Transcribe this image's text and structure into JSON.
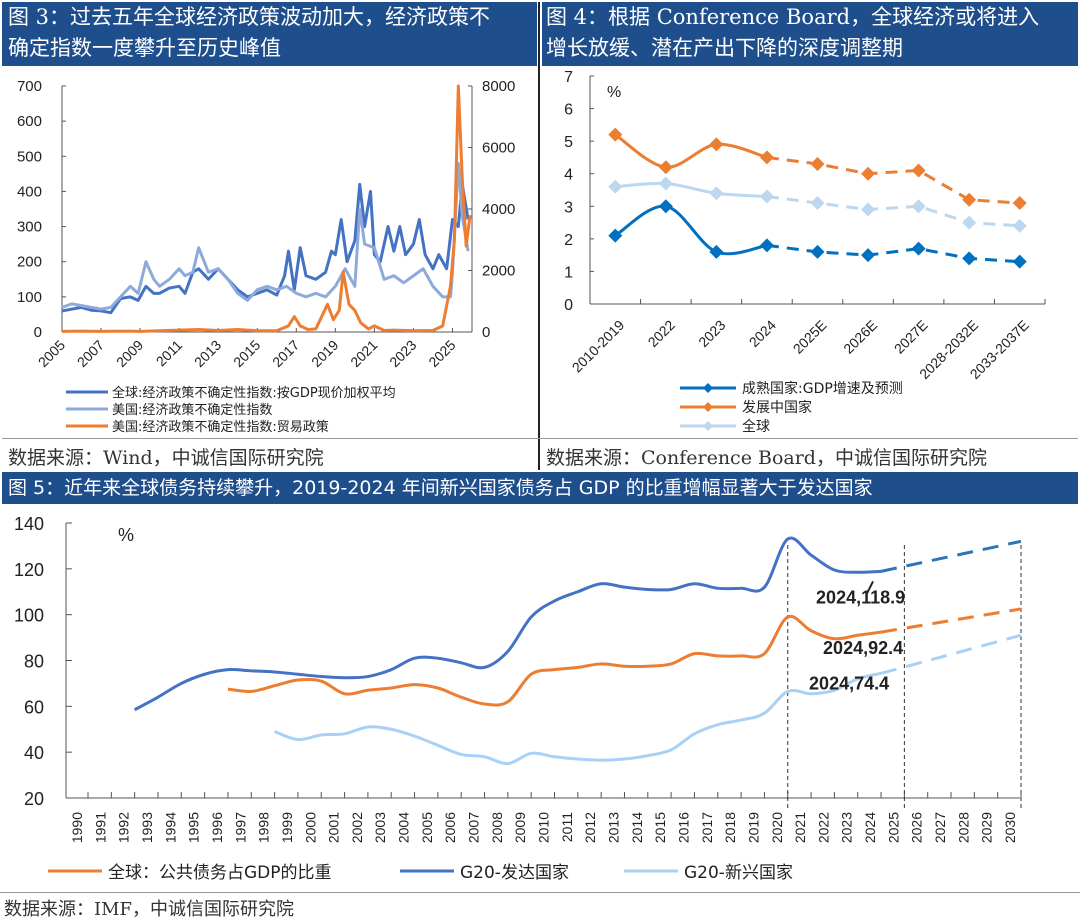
{
  "figures": {
    "fig3": {
      "title_line1": "图 3：过去五年全球经济政策波动加大，经济政策不",
      "title_line2": "确定指数一度攀升至历史峰值",
      "source": "数据来源：Wind，中诚信国际研究院"
    },
    "fig4": {
      "title_line1": "图 4：根据 Conference Board，全球经济或将进入",
      "title_line2": "增长放缓、潜在产出下降的深度调整期",
      "source": "数据来源：Conference Board，中诚信国际研究院"
    },
    "fig5": {
      "title": "图 5：近年来全球债务持续攀升，2019-2024 年间新兴国家债务占 GDP 的比重增幅显著大于发达国家",
      "source": "数据来源：IMF，中诚信国际研究院"
    }
  },
  "colors": {
    "title_bg": "#1f4e8c",
    "dark_blue": "#4472c4",
    "mid_blue": "#8eaadb",
    "orange": "#ed7d31",
    "f4_blue": "#0070c0",
    "light_blue": "#bdd7ee",
    "f5_emerging": "#a9d1f5",
    "f5_dev_forecast": "#2e75b6"
  },
  "chart_data": [
    {
      "id": "fig3",
      "type": "line",
      "title": "过去五年全球经济政策波动加大，经济政策不确定指数一度攀升至历史峰值",
      "xlabel": "",
      "ylabel": "",
      "x_ticks": [
        "2005",
        "2007",
        "2009",
        "2011",
        "2013",
        "2015",
        "2017",
        "2019",
        "2021",
        "2023",
        "2025"
      ],
      "xlim": [
        2005,
        2026
      ],
      "y_left": {
        "ylim": [
          0,
          700
        ],
        "ticks": [
          "0",
          "100",
          "200",
          "300",
          "400",
          "500",
          "600",
          "700"
        ]
      },
      "y_right": {
        "ylim": [
          0,
          8000
        ],
        "ticks": [
          "0",
          "2000",
          "4000",
          "6000",
          "8000"
        ]
      },
      "legend_position": "bottom",
      "series": [
        {
          "name": "全球:经济政策不确定性指数:按GDP现价加权平均",
          "axis": "left",
          "color": "#4472c4",
          "x": [
            2005,
            2005.5,
            2006,
            2006.5,
            2007,
            2007.5,
            2008,
            2008.5,
            2008.9,
            2009.3,
            2009.7,
            2010,
            2010.5,
            2011,
            2011.3,
            2011.7,
            2012,
            2012.5,
            2013,
            2013.5,
            2014,
            2014.5,
            2015,
            2015.5,
            2016,
            2016.4,
            2016.6,
            2016.9,
            2017.2,
            2017.5,
            2018,
            2018.5,
            2018.8,
            2019,
            2019.3,
            2019.6,
            2020,
            2020.25,
            2020.5,
            2020.8,
            2021,
            2021.3,
            2021.7,
            2022,
            2022.3,
            2022.6,
            2023,
            2023.3,
            2023.6,
            2024,
            2024.3,
            2024.7,
            2025,
            2025.3,
            2025.5,
            2025.8
          ],
          "y": [
            60,
            65,
            70,
            62,
            60,
            55,
            95,
            100,
            90,
            130,
            110,
            110,
            125,
            130,
            110,
            170,
            180,
            150,
            180,
            150,
            120,
            100,
            110,
            120,
            105,
            160,
            230,
            120,
            240,
            160,
            150,
            170,
            230,
            220,
            320,
            200,
            260,
            420,
            300,
            400,
            220,
            200,
            300,
            230,
            300,
            220,
            250,
            320,
            220,
            180,
            220,
            180,
            320,
            300,
            420,
            320
          ]
        },
        {
          "name": "美国:经济政策不确定性指数",
          "axis": "left",
          "color": "#8eaadb",
          "x": [
            2005,
            2005.5,
            2006,
            2006.5,
            2007,
            2007.5,
            2008,
            2008.5,
            2008.9,
            2009.3,
            2009.7,
            2010,
            2010.5,
            2011,
            2011.3,
            2011.7,
            2012,
            2012.5,
            2013,
            2013.5,
            2014,
            2014.5,
            2015,
            2015.5,
            2016,
            2016.5,
            2017,
            2017.5,
            2018,
            2018.5,
            2019,
            2019.5,
            2020,
            2020.25,
            2020.5,
            2021,
            2021.5,
            2022,
            2022.5,
            2023,
            2023.5,
            2024,
            2024.5,
            2024.9,
            2025,
            2025.3,
            2025.5,
            2025.8
          ],
          "y": [
            70,
            80,
            75,
            70,
            65,
            70,
            100,
            130,
            110,
            200,
            150,
            130,
            150,
            180,
            160,
            170,
            240,
            170,
            180,
            150,
            110,
            90,
            120,
            130,
            120,
            130,
            110,
            100,
            110,
            100,
            130,
            180,
            130,
            350,
            250,
            240,
            150,
            160,
            140,
            160,
            180,
            130,
            100,
            100,
            170,
            480,
            330,
            230
          ]
        },
        {
          "name": "美国:经济政策不确定性指数:贸易政策",
          "axis": "right",
          "color": "#ed7d31",
          "x": [
            2005,
            2006,
            2007,
            2008,
            2009,
            2010,
            2011,
            2012,
            2013,
            2014,
            2015,
            2016,
            2016.6,
            2016.9,
            2017.2,
            2017.6,
            2018,
            2018.3,
            2018.6,
            2018.9,
            2019.2,
            2019.4,
            2019.7,
            2020,
            2020.3,
            2020.7,
            2021,
            2021.5,
            2022,
            2023,
            2024,
            2024.5,
            2024.9,
            2025.1,
            2025.3,
            2025.5,
            2025.7,
            2025.9
          ],
          "y": [
            20,
            30,
            20,
            30,
            20,
            40,
            60,
            80,
            50,
            80,
            40,
            40,
            200,
            500,
            200,
            80,
            100,
            500,
            900,
            400,
            700,
            1950,
            900,
            700,
            300,
            100,
            200,
            50,
            60,
            40,
            50,
            200,
            1500,
            3000,
            8000,
            5000,
            2800,
            3800
          ]
        }
      ]
    },
    {
      "id": "fig4",
      "type": "line",
      "title": "根据 Conference Board，全球经济或将进入增长放缓、潜在产出下降的深度调整期",
      "ylabel": "%",
      "ylim": [
        0,
        7
      ],
      "y_ticks": [
        "0",
        "1",
        "2",
        "3",
        "4",
        "5",
        "6",
        "7"
      ],
      "categories": [
        "2010-2019",
        "2022",
        "2023",
        "2024",
        "2025E",
        "2026E",
        "2027E",
        "2028-2032E",
        "2033-2037E"
      ],
      "forecast_start_index": 3,
      "legend_position": "bottom",
      "series": [
        {
          "name": "成熟国家:GDP增速及预测",
          "color": "#0070c0",
          "values": [
            2.1,
            3.0,
            1.6,
            1.8,
            1.6,
            1.5,
            1.7,
            1.4,
            1.3
          ]
        },
        {
          "name": "发展中国家",
          "color": "#ed7d31",
          "values": [
            5.2,
            4.2,
            4.9,
            4.5,
            4.3,
            4.0,
            4.1,
            3.2,
            3.1
          ]
        },
        {
          "name": "全球",
          "color": "#bdd7ee",
          "values": [
            3.6,
            3.7,
            3.4,
            3.3,
            3.1,
            2.9,
            3.0,
            2.5,
            2.4
          ]
        }
      ]
    },
    {
      "id": "fig5",
      "type": "line",
      "title": "近年来全球债务持续攀升，2019-2024 年间新兴国家债务占 GDP 的比重增幅显著大于发达国家",
      "ylabel": "%",
      "ylim": [
        20,
        140
      ],
      "y_ticks": [
        "20",
        "40",
        "60",
        "80",
        "100",
        "120",
        "140"
      ],
      "xlim": [
        1990,
        2030
      ],
      "x_ticks": [
        "1990",
        "1991",
        "1992",
        "1993",
        "1994",
        "1995",
        "1996",
        "1997",
        "1998",
        "1999",
        "2000",
        "2001",
        "2002",
        "2003",
        "2004",
        "2005",
        "2006",
        "2007",
        "2008",
        "2009",
        "2010",
        "2011",
        "2012",
        "2013",
        "2014",
        "2015",
        "2016",
        "2017",
        "2018",
        "2019",
        "2020",
        "2021",
        "2022",
        "2023",
        "2024",
        "2025",
        "2026",
        "2027",
        "2028",
        "2029",
        "2030"
      ],
      "vertical_markers": [
        2020,
        2025,
        2030
      ],
      "forecast_start": 2024,
      "legend_position": "bottom",
      "annotations": [
        {
          "text": "2024,118.9",
          "x": 2024,
          "y": 118.9
        },
        {
          "text": "2024,92.4",
          "x": 2024,
          "y": 92.4
        },
        {
          "text": "2024,74.4",
          "x": 2024,
          "y": 74.4
        }
      ],
      "series": [
        {
          "name": "全球：公共债务占GDP的比重",
          "color": "#ed7d31",
          "x": [
            1996,
            1997,
            1998,
            1999,
            2000,
            2001,
            2002,
            2003,
            2004,
            2005,
            2006,
            2007,
            2008,
            2009,
            2010,
            2011,
            2012,
            2013,
            2014,
            2015,
            2016,
            2017,
            2018,
            2019,
            2020,
            2021,
            2022,
            2023,
            2024
          ],
          "y": [
            67.5,
            66.5,
            69,
            71.5,
            71,
            65.5,
            67,
            68,
            69.5,
            68,
            64,
            61,
            62,
            74,
            76,
            77,
            78.5,
            77.5,
            77.5,
            78.5,
            83,
            82,
            82,
            83,
            99,
            93,
            89.5,
            91,
            92.4
          ],
          "forecast": {
            "x": [
              2024,
              2030
            ],
            "y": [
              92.4,
              102.5
            ]
          }
        },
        {
          "name": "G20-发达国家",
          "color": "#4472c4",
          "x": [
            1992,
            1993,
            1994,
            1995,
            1996,
            1997,
            1998,
            1999,
            2000,
            2001,
            2002,
            2003,
            2004,
            2005,
            2006,
            2007,
            2008,
            2009,
            2010,
            2011,
            2012,
            2013,
            2014,
            2015,
            2016,
            2017,
            2018,
            2019,
            2020,
            2021,
            2022,
            2023,
            2024
          ],
          "y": [
            58.5,
            64,
            70,
            74,
            76,
            75.5,
            75,
            74,
            73,
            72.5,
            73,
            76,
            81,
            81,
            79,
            77,
            84,
            99,
            106,
            110,
            113.5,
            112,
            111,
            111,
            113.5,
            111.5,
            111.5,
            112,
            133,
            126,
            119.5,
            118.5,
            118.9
          ],
          "forecast": {
            "x": [
              2024,
              2030
            ],
            "y": [
              118.9,
              132
            ]
          }
        },
        {
          "name": "G20-新兴国家",
          "color": "#a9d1f5",
          "x": [
            1998,
            1999,
            2000,
            2001,
            2002,
            2003,
            2004,
            2005,
            2006,
            2007,
            2008,
            2009,
            2010,
            2011,
            2012,
            2013,
            2014,
            2015,
            2016,
            2017,
            2018,
            2019,
            2020,
            2021,
            2022,
            2023,
            2024
          ],
          "y": [
            49,
            45.5,
            47.5,
            48,
            51,
            50,
            47,
            43,
            39,
            38,
            35,
            39.5,
            38,
            37,
            36.5,
            37,
            38.5,
            41,
            48,
            52,
            54,
            57,
            66.5,
            65.5,
            67,
            72,
            74.4
          ],
          "forecast": {
            "x": [
              2024,
              2030
            ],
            "y": [
              74.4,
              91
            ]
          }
        }
      ]
    }
  ]
}
